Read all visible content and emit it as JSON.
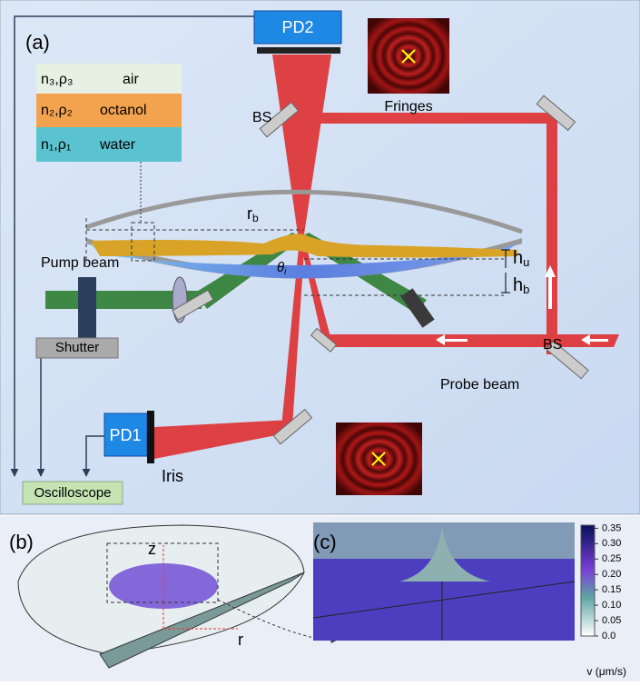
{
  "panel_a": {
    "label": "(a)",
    "pd2": "PD2",
    "pd1": "PD1",
    "fringes": "Fringes",
    "bs_top": "BS",
    "bs_right": "BS",
    "layers": [
      {
        "symbol": "n₃,ρ₃",
        "name": "air"
      },
      {
        "symbol": "n₂,ρ₂",
        "name": "octanol"
      },
      {
        "symbol": "n₁,ρ₁",
        "name": "water"
      }
    ],
    "r_b": {
      "main": "r",
      "sub": "b"
    },
    "theta_i": {
      "main": "θ",
      "sub": "i"
    },
    "h_u": {
      "main": "h",
      "sub": "u"
    },
    "h_b": {
      "main": "h",
      "sub": "b"
    },
    "pump_beam": "Pump beam",
    "shutter": "Shutter",
    "probe_beam": "Probe beam",
    "iris": "Iris",
    "oscilloscope": "Oscilloscope"
  },
  "panel_b": {
    "label": "(b)",
    "z": "z",
    "r": "r"
  },
  "panel_c": {
    "label": "(c)"
  },
  "colorbar": {
    "lim": [
      0,
      0.36
    ],
    "label": "v (μm/s)",
    "ticks": [
      {
        "value": 0.0,
        "label": "0.0"
      },
      0.05,
      {
        "value": 0.1,
        "label": "0.10"
      },
      0.15,
      {
        "value": 0.2,
        "label": "0.20"
      },
      0.25,
      {
        "value": 0.3,
        "label": "0.30"
      },
      0.35
    ]
  }
}
